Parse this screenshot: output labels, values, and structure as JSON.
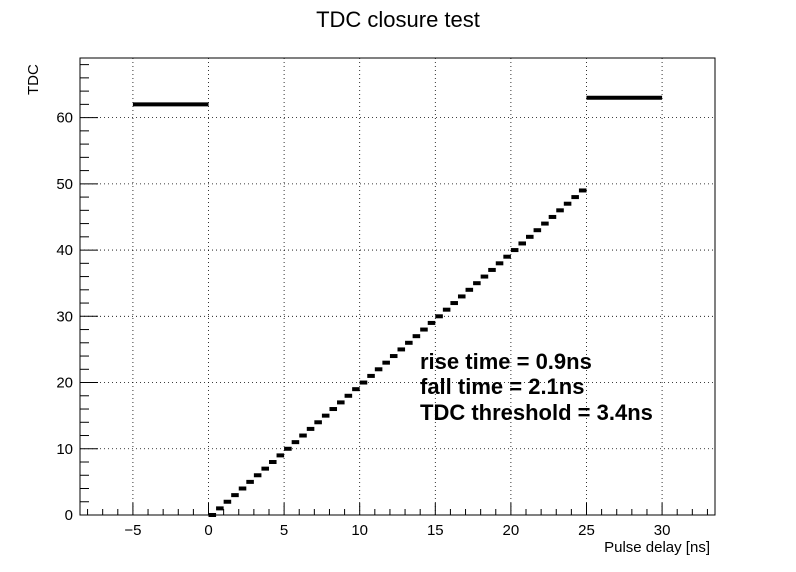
{
  "chart_data": {
    "type": "scatter",
    "title": "TDC closure test",
    "xlabel": "Pulse delay [ns]",
    "ylabel": "TDC",
    "xlim": [
      -8.5,
      33.5
    ],
    "ylim": [
      0,
      69
    ],
    "x_ticks": [
      -5,
      0,
      5,
      10,
      15,
      20,
      25,
      30
    ],
    "x_tick_labels": [
      "−5",
      "0",
      "5",
      "10",
      "15",
      "20",
      "25",
      "30"
    ],
    "y_ticks": [
      0,
      10,
      20,
      30,
      40,
      50,
      60
    ],
    "y_tick_labels": [
      "0",
      "10",
      "20",
      "30",
      "40",
      "50",
      "60"
    ],
    "grid": true,
    "annotations": [
      "rise time = 0.9ns",
      "fall time = 2.1ns",
      "TDC threshold = 3.4ns"
    ],
    "flat_segments": [
      {
        "x0": -5,
        "x1": 0,
        "y": 62
      },
      {
        "x0": 25,
        "x1": 30,
        "y": 63
      }
    ],
    "step_series": {
      "bin_width": 0.5,
      "x": [
        0,
        0.5,
        1,
        1.5,
        2,
        2.5,
        3,
        3.5,
        4,
        4.5,
        5,
        5.5,
        6,
        6.5,
        7,
        7.5,
        8,
        8.5,
        9,
        9.5,
        10,
        10.5,
        11,
        11.5,
        12,
        12.5,
        13,
        13.5,
        14,
        14.5,
        15,
        15.5,
        16,
        16.5,
        17,
        17.5,
        18,
        18.5,
        19,
        19.5,
        20,
        20.5,
        21,
        21.5,
        22,
        22.5,
        23,
        23.5,
        24,
        24.5
      ],
      "y": [
        0,
        1,
        2,
        3,
        4,
        5,
        6,
        7,
        8,
        9,
        10,
        11,
        12,
        13,
        14,
        15,
        16,
        17,
        18,
        19,
        20,
        21,
        22,
        23,
        24,
        25,
        26,
        27,
        28,
        29,
        30,
        31,
        32,
        33,
        34,
        35,
        36,
        37,
        38,
        39,
        40,
        41,
        42,
        43,
        44,
        45,
        46,
        47,
        48,
        49
      ]
    }
  }
}
